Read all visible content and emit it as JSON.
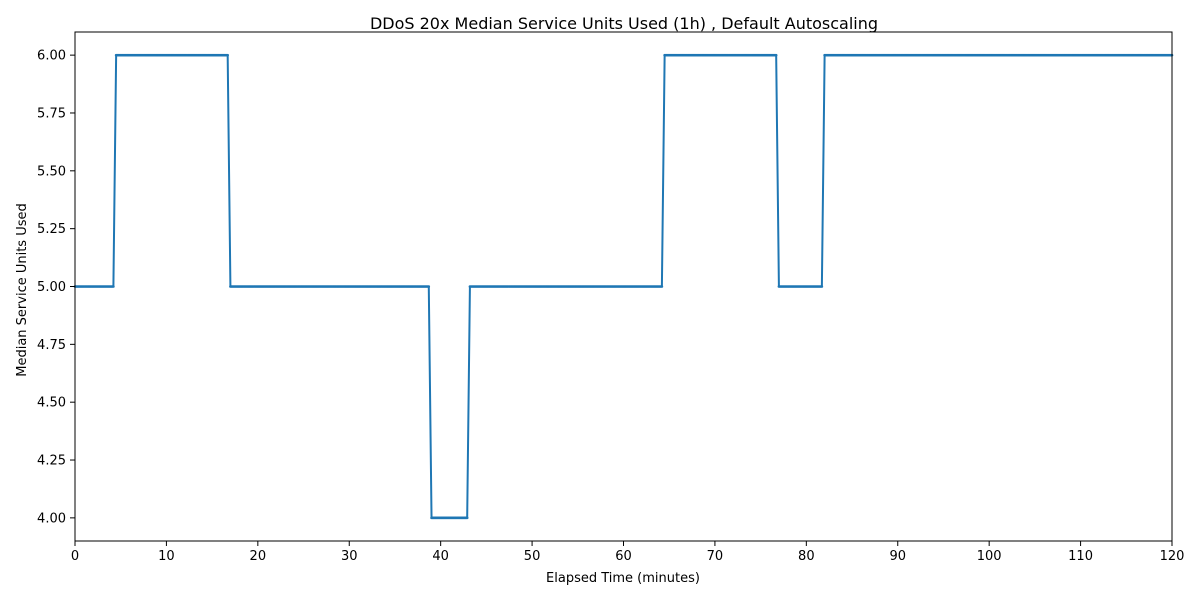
{
  "chart_data": {
    "type": "line",
    "title": "DDoS 20x Median Service Units Used (1h) , Default Autoscaling",
    "xlabel": "Elapsed Time (minutes)",
    "ylabel": "Median Service Units Used",
    "xlim": [
      0,
      120
    ],
    "ylim": [
      3.9,
      6.1
    ],
    "xticks": [
      0,
      10,
      20,
      30,
      40,
      50,
      60,
      70,
      80,
      90,
      100,
      110,
      120
    ],
    "xtick_labels": [
      "0",
      "10",
      "20",
      "30",
      "40",
      "50",
      "60",
      "70",
      "80",
      "90",
      "100",
      "110",
      "120"
    ],
    "yticks": [
      4.0,
      4.25,
      4.5,
      4.75,
      5.0,
      5.25,
      5.5,
      5.75,
      6.0
    ],
    "ytick_labels": [
      "4.00",
      "4.25",
      "4.50",
      "4.75",
      "5.00",
      "5.25",
      "5.50",
      "5.75",
      "6.00"
    ],
    "grid": false,
    "color": "#1f77b4",
    "series": [
      {
        "segments": [
          {
            "x_start": 0.0,
            "x_end": 4.2,
            "y": 5.0
          },
          {
            "x_start": 4.5,
            "x_end": 16.7,
            "y": 6.0
          },
          {
            "x_start": 17.0,
            "x_end": 38.7,
            "y": 5.0
          },
          {
            "x_start": 39.0,
            "x_end": 42.9,
            "y": 4.0
          },
          {
            "x_start": 43.2,
            "x_end": 64.2,
            "y": 5.0
          },
          {
            "x_start": 64.5,
            "x_end": 76.7,
            "y": 6.0
          },
          {
            "x_start": 77.0,
            "x_end": 81.7,
            "y": 5.0
          },
          {
            "x_start": 82.0,
            "x_end": 120.0,
            "y": 6.0
          }
        ]
      }
    ]
  }
}
